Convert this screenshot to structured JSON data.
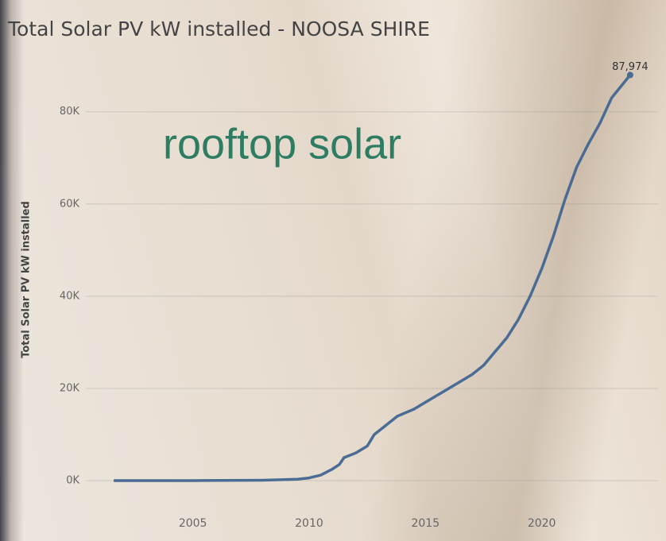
{
  "chart_data": {
    "type": "line",
    "title": "Total Solar PV kW installed - NOOSA SHIRE",
    "y_label": "Total Solar PV kW installed",
    "annotation": "rooftop solar",
    "x": [
      2001.6,
      2005,
      2008,
      2009.5,
      2010,
      2010.5,
      2011,
      2011.3,
      2011.5,
      2012,
      2012.5,
      2012.8,
      2013.3,
      2013.8,
      2014.5,
      2015,
      2016,
      2017,
      2017.5,
      2018,
      2018.5,
      2019,
      2019.5,
      2020,
      2020.5,
      2021,
      2021.5,
      2022,
      2022.5,
      2023,
      2023.8
    ],
    "values": [
      0,
      0,
      100,
      300,
      600,
      1200,
      2500,
      3500,
      5000,
      6000,
      7500,
      10000,
      12000,
      14000,
      15500,
      17000,
      20000,
      23000,
      25000,
      28000,
      31000,
      35000,
      40000,
      46000,
      53000,
      61000,
      68000,
      73000,
      77500,
      83000,
      87974
    ],
    "value_labels": [
      null,
      null,
      null,
      null,
      null,
      null,
      null,
      null,
      null,
      null,
      null,
      null,
      null,
      null,
      null,
      null,
      null,
      null,
      null,
      null,
      null,
      null,
      null,
      null,
      null,
      null,
      null,
      null,
      null,
      null,
      "87,974"
    ],
    "color": "#4a6b93",
    "xlim": [
      2000.4,
      2025
    ],
    "xticks": [
      2005,
      2010,
      2015,
      2020
    ],
    "ylim": [
      -4300,
      89600
    ],
    "yticks": [
      {
        "value": 0,
        "label": "0K"
      },
      {
        "value": 20000,
        "label": "20K"
      },
      {
        "value": 40000,
        "label": "40K"
      },
      {
        "value": 60000,
        "label": "60K"
      },
      {
        "value": 80000,
        "label": "80K"
      }
    ],
    "grid": true
  }
}
